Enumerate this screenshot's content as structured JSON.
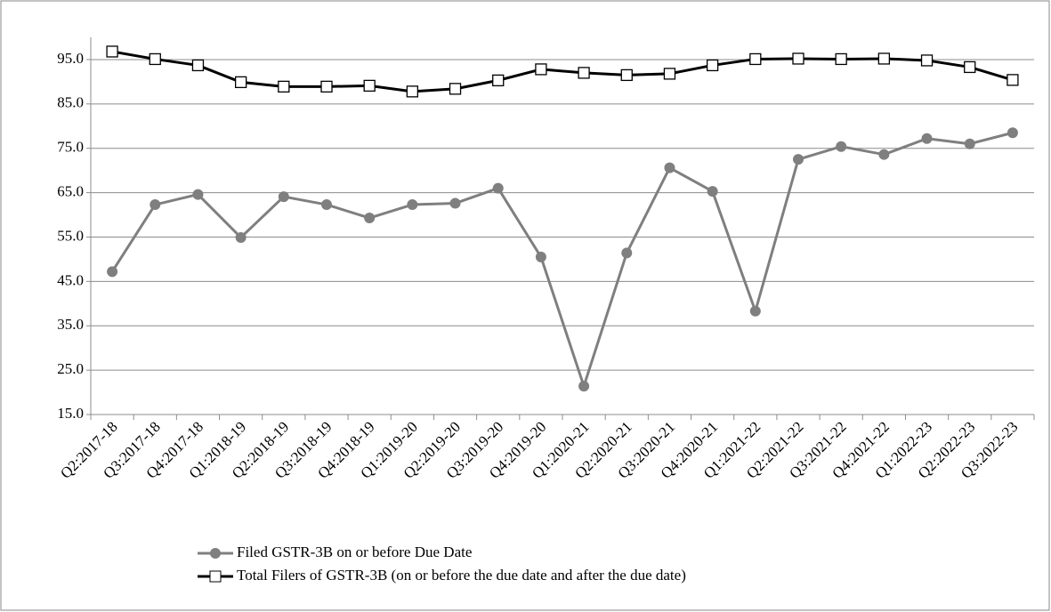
{
  "chart_data": {
    "type": "line",
    "categories": [
      "Q2:2017-18",
      "Q3:2017-18",
      "Q4:2017-18",
      "Q1:2018-19",
      "Q2:2018-19",
      "Q3:2018-19",
      "Q4:2018-19",
      "Q1:2019-20",
      "Q2:2019-20",
      "Q3:2019-20",
      "Q4:2019-20",
      "Q1:2020-21",
      "Q2:2020-21",
      "Q3:2020-21",
      "Q4:2020-21",
      "Q1:2021-22",
      "Q2:2021-22",
      "Q3:2021-22",
      "Q4:2021-22",
      "Q1:2022-23",
      "Q2:2022-23",
      "Q3:2022-23"
    ],
    "series": [
      {
        "name": "Filed GSTR-3B on or before Due Date",
        "color": "#7f7f7f",
        "marker": "circle",
        "values": [
          47.2,
          62.3,
          64.6,
          54.9,
          64.1,
          62.3,
          59.3,
          62.3,
          62.6,
          66.0,
          50.5,
          21.4,
          51.4,
          70.6,
          65.3,
          38.3,
          72.5,
          75.4,
          73.6,
          77.2,
          76.0,
          78.5
        ]
      },
      {
        "name": "Total Filers of GSTR-3B (on or before the due date and after the due date)",
        "color": "#000000",
        "marker": "square",
        "values": [
          96.8,
          95.1,
          93.7,
          89.9,
          88.9,
          88.9,
          89.1,
          87.8,
          88.4,
          90.3,
          92.8,
          92.0,
          91.5,
          91.8,
          93.7,
          95.1,
          95.2,
          95.1,
          95.2,
          94.8,
          93.3,
          90.4
        ]
      }
    ],
    "ylim": [
      15,
      100
    ],
    "yticks": [
      {
        "value": 15,
        "label": "15.0"
      },
      {
        "value": 25,
        "label": "25.0"
      },
      {
        "value": 35,
        "label": "35.0"
      },
      {
        "value": 45,
        "label": "45.0"
      },
      {
        "value": 55,
        "label": "55.0"
      },
      {
        "value": 65,
        "label": "65.0"
      },
      {
        "value": 75,
        "label": "75.0"
      },
      {
        "value": 85,
        "label": "85.0"
      },
      {
        "value": 95,
        "label": "95.0"
      }
    ],
    "grid": true
  }
}
